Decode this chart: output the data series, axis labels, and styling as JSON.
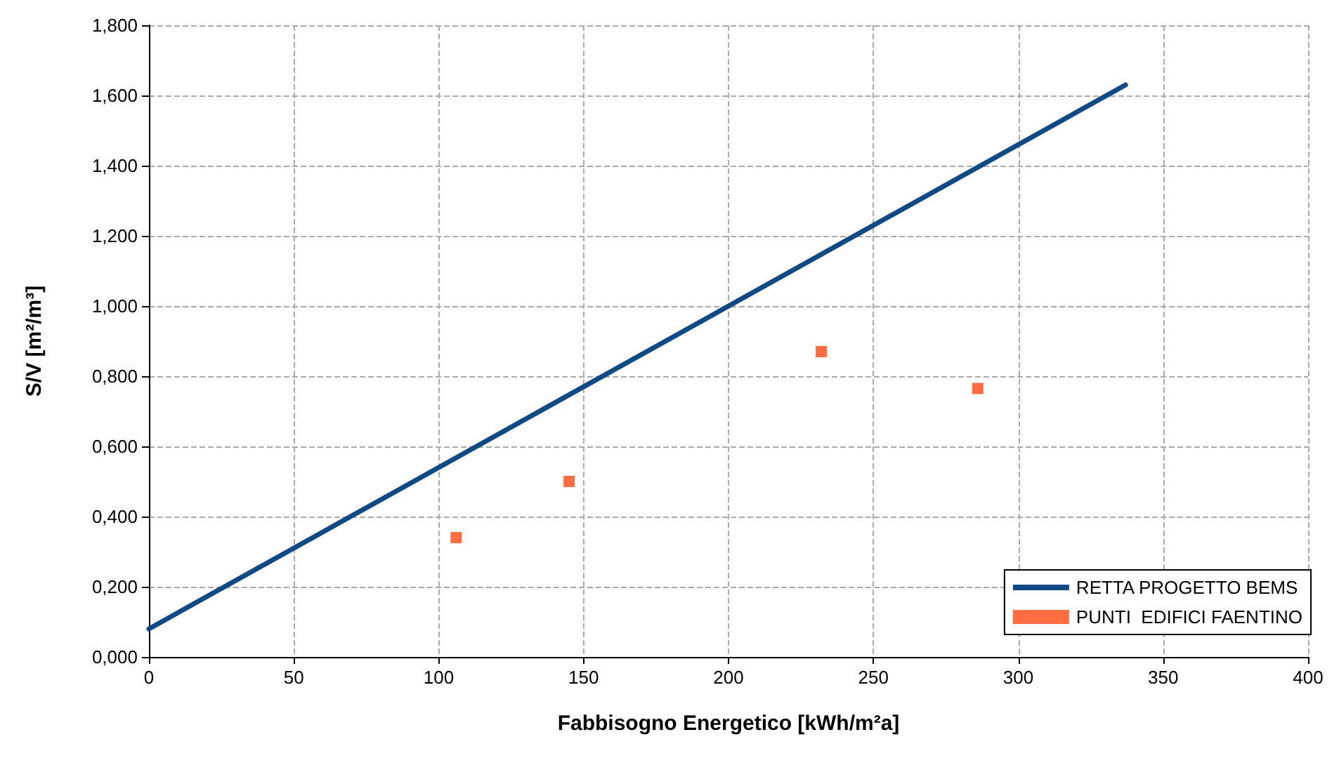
{
  "chart_data": {
    "type": "scatter",
    "xlabel": "Fabbisogno Energetico [kWh/m²a]",
    "ylabel": "S/V [m²/m³]",
    "series": [
      {
        "name": "RETTA PROGETTO BEMS",
        "type": "line",
        "color": "#0f4a85",
        "marker": "none",
        "line_style": "solid",
        "x": [
          0,
          337
        ],
        "values": [
          0.08,
          1.63
        ]
      },
      {
        "name": "PUNTI  EDIFICI FAENTINO",
        "color": "#ff4a14",
        "marker": "square",
        "x": [
          106,
          145,
          232,
          286
        ],
        "values": [
          0.34,
          0.5,
          0.87,
          0.765
        ]
      }
    ],
    "xlim": [
      0,
      400
    ],
    "xticks": [
      0,
      50,
      100,
      150,
      200,
      250,
      300,
      350,
      400
    ],
    "ylim": [
      0,
      1.8
    ],
    "yticks": [
      {
        "value": 0,
        "label": "0,000"
      },
      {
        "value": 0.2,
        "label": "0,200"
      },
      {
        "value": 0.4,
        "label": "0,400"
      },
      {
        "value": 0.6,
        "label": "0,600"
      },
      {
        "value": 0.8,
        "label": "0,800"
      },
      {
        "value": 1,
        "label": "1,000"
      },
      {
        "value": 1.2,
        "label": "1,200"
      },
      {
        "value": 1.4,
        "label": "1,400"
      },
      {
        "value": 1.6,
        "label": "1,600"
      },
      {
        "value": 1.8,
        "label": "1,800"
      }
    ],
    "grid": true,
    "legend": "bottom right"
  }
}
